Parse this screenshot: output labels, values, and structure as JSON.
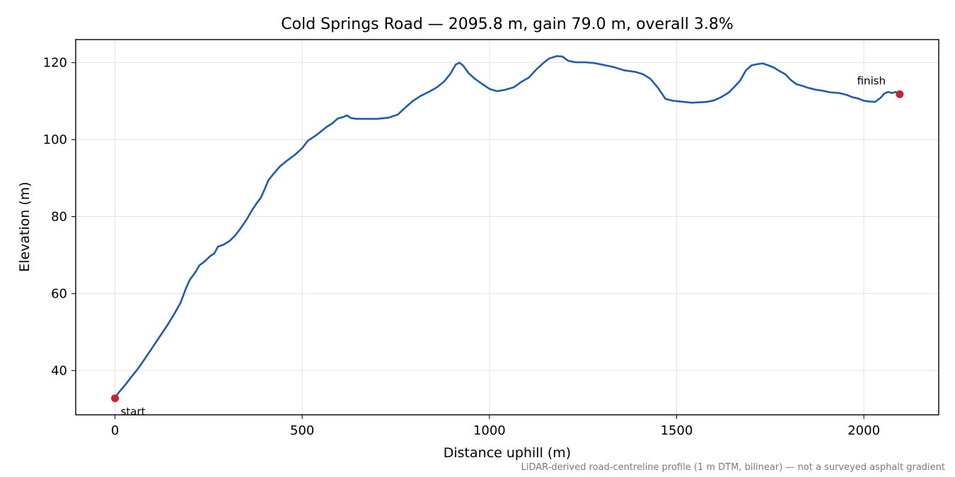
{
  "chart_data": {
    "type": "line",
    "title": "Cold Springs Road — 2095.8 m, gain 79.0 m, overall 3.8%",
    "xlabel": "Distance uphill (m)",
    "ylabel": "Elevation (m)",
    "xlim": [
      -105,
      2200
    ],
    "ylim": [
      28.5,
      126
    ],
    "x_ticks": [
      0,
      500,
      1000,
      1500,
      2000
    ],
    "y_ticks": [
      40,
      60,
      80,
      100,
      120
    ],
    "grid": true,
    "legend": "none",
    "series": [
      {
        "color": "#1f5bb0",
        "points": [
          [
            0,
            32.8
          ],
          [
            10,
            34.3
          ],
          [
            25,
            36.0
          ],
          [
            45,
            38.5
          ],
          [
            60,
            40.3
          ],
          [
            80,
            43.1
          ],
          [
            100,
            46.0
          ],
          [
            120,
            48.9
          ],
          [
            140,
            51.8
          ],
          [
            160,
            55.0
          ],
          [
            175,
            57.6
          ],
          [
            190,
            61.5
          ],
          [
            200,
            63.6
          ],
          [
            215,
            65.6
          ],
          [
            225,
            67.3
          ],
          [
            240,
            68.4
          ],
          [
            255,
            69.8
          ],
          [
            265,
            70.4
          ],
          [
            275,
            72.2
          ],
          [
            290,
            72.7
          ],
          [
            305,
            73.6
          ],
          [
            320,
            75.0
          ],
          [
            335,
            76.9
          ],
          [
            350,
            79.0
          ],
          [
            365,
            81.5
          ],
          [
            375,
            83.0
          ],
          [
            390,
            85.0
          ],
          [
            400,
            87.2
          ],
          [
            410,
            89.5
          ],
          [
            425,
            91.3
          ],
          [
            440,
            93.0
          ],
          [
            460,
            94.6
          ],
          [
            480,
            96.0
          ],
          [
            500,
            97.8
          ],
          [
            515,
            99.7
          ],
          [
            535,
            101.0
          ],
          [
            550,
            102.1
          ],
          [
            565,
            103.3
          ],
          [
            580,
            104.2
          ],
          [
            595,
            105.5
          ],
          [
            610,
            105.9
          ],
          [
            620,
            106.3
          ],
          [
            630,
            105.6
          ],
          [
            645,
            105.4
          ],
          [
            670,
            105.4
          ],
          [
            700,
            105.4
          ],
          [
            730,
            105.7
          ],
          [
            755,
            106.5
          ],
          [
            775,
            108.3
          ],
          [
            795,
            110.0
          ],
          [
            815,
            111.3
          ],
          [
            840,
            112.5
          ],
          [
            860,
            113.6
          ],
          [
            880,
            115.2
          ],
          [
            895,
            117.0
          ],
          [
            910,
            119.5
          ],
          [
            920,
            120.0
          ],
          [
            930,
            119.2
          ],
          [
            945,
            117.2
          ],
          [
            960,
            115.9
          ],
          [
            980,
            114.5
          ],
          [
            1000,
            113.2
          ],
          [
            1020,
            112.6
          ],
          [
            1040,
            112.9
          ],
          [
            1065,
            113.6
          ],
          [
            1085,
            115.0
          ],
          [
            1105,
            116.1
          ],
          [
            1125,
            118.2
          ],
          [
            1145,
            120.0
          ],
          [
            1160,
            121.1
          ],
          [
            1180,
            121.7
          ],
          [
            1195,
            121.6
          ],
          [
            1210,
            120.5
          ],
          [
            1230,
            120.1
          ],
          [
            1255,
            120.1
          ],
          [
            1280,
            119.9
          ],
          [
            1300,
            119.5
          ],
          [
            1330,
            118.9
          ],
          [
            1360,
            118.0
          ],
          [
            1390,
            117.6
          ],
          [
            1410,
            117.0
          ],
          [
            1430,
            115.8
          ],
          [
            1450,
            113.5
          ],
          [
            1470,
            110.6
          ],
          [
            1490,
            110.1
          ],
          [
            1510,
            109.9
          ],
          [
            1540,
            109.6
          ],
          [
            1560,
            109.7
          ],
          [
            1580,
            109.8
          ],
          [
            1600,
            110.2
          ],
          [
            1620,
            111.1
          ],
          [
            1640,
            112.3
          ],
          [
            1655,
            113.8
          ],
          [
            1670,
            115.4
          ],
          [
            1685,
            118.0
          ],
          [
            1700,
            119.3
          ],
          [
            1715,
            119.6
          ],
          [
            1730,
            119.8
          ],
          [
            1745,
            119.3
          ],
          [
            1760,
            118.7
          ],
          [
            1775,
            117.8
          ],
          [
            1790,
            117.0
          ],
          [
            1805,
            115.5
          ],
          [
            1820,
            114.4
          ],
          [
            1835,
            114.0
          ],
          [
            1850,
            113.5
          ],
          [
            1870,
            113.0
          ],
          [
            1890,
            112.7
          ],
          [
            1910,
            112.3
          ],
          [
            1935,
            112.1
          ],
          [
            1955,
            111.6
          ],
          [
            1970,
            111.0
          ],
          [
            1985,
            110.7
          ],
          [
            2000,
            110.1
          ],
          [
            2015,
            109.9
          ],
          [
            2030,
            109.8
          ],
          [
            2045,
            110.9
          ],
          [
            2055,
            112.0
          ],
          [
            2065,
            112.4
          ],
          [
            2075,
            112.1
          ],
          [
            2085,
            112.4
          ],
          [
            2095.8,
            111.8
          ]
        ]
      }
    ],
    "markers": [
      {
        "x": 0,
        "y": 32.8,
        "label": "start",
        "color": "#c8232c"
      },
      {
        "x": 2095.8,
        "y": 111.8,
        "label": "finish",
        "color": "#c8232c"
      }
    ],
    "footnote": "LiDAR-derived road-centreline profile (1 m DTM, bilinear) — not a surveyed asphalt gradient"
  }
}
